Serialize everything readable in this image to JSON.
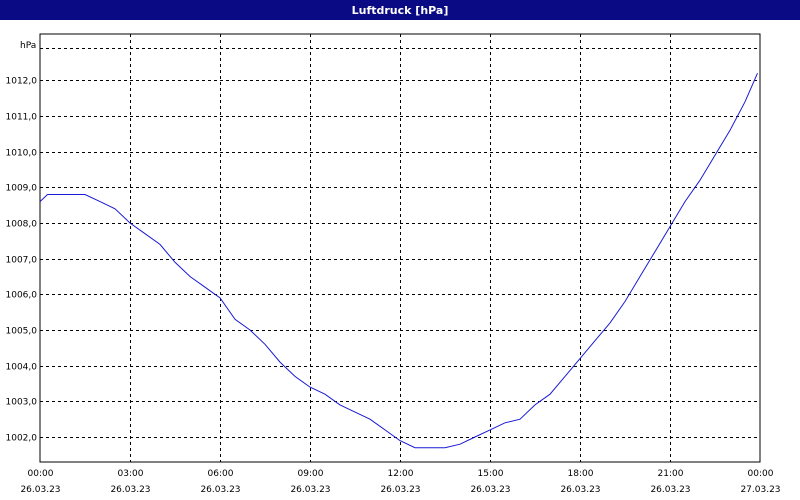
{
  "title": "Luftdruck [hPa]",
  "colors": {
    "title_bar": "#0a0a84",
    "title_text": "#ffffff",
    "line": "#1a1ad6",
    "grid": "#000000",
    "background": "#ffffff"
  },
  "chart_data": {
    "type": "line",
    "title": "Luftdruck [hPa]",
    "ylabel": "hPa",
    "xlabel": "",
    "grid": true,
    "grid_style": "dashed",
    "ylim": [
      1001.3,
      1013.3
    ],
    "yticks": [
      "1002,0",
      "1003,0",
      "1004,0",
      "1005,0",
      "1006,0",
      "1007,0",
      "1008,0",
      "1009,0",
      "1010,0",
      "1011,0",
      "1012,0"
    ],
    "ytick_values": [
      1002,
      1003,
      1004,
      1005,
      1006,
      1007,
      1008,
      1009,
      1010,
      1011,
      1012
    ],
    "xlim": [
      "26.03.23 00:00",
      "27.03.23 00:00"
    ],
    "xticks": [
      {
        "time": "00:00",
        "date": "26.03.23"
      },
      {
        "time": "03:00",
        "date": "26.03.23"
      },
      {
        "time": "06:00",
        "date": "26.03.23"
      },
      {
        "time": "09:00",
        "date": "26.03.23"
      },
      {
        "time": "12:00",
        "date": "26.03.23"
      },
      {
        "time": "15:00",
        "date": "26.03.23"
      },
      {
        "time": "18:00",
        "date": "26.03.23"
      },
      {
        "time": "21:00",
        "date": "26.03.23"
      },
      {
        "time": "00:00",
        "date": "27.03.23"
      }
    ],
    "series": [
      {
        "x": [
          "26.03.23 00:00",
          "26.03.23 00:15",
          "26.03.23 00:30",
          "26.03.23 01:00",
          "26.03.23 01:30",
          "26.03.23 02:00",
          "26.03.23 02:30",
          "26.03.23 03:00",
          "26.03.23 03:30",
          "26.03.23 04:00",
          "26.03.23 04:30",
          "26.03.23 05:00",
          "26.03.23 05:30",
          "26.03.23 06:00",
          "26.03.23 06:30",
          "26.03.23 07:00",
          "26.03.23 07:30",
          "26.03.23 08:00",
          "26.03.23 08:30",
          "26.03.23 09:00",
          "26.03.23 09:30",
          "26.03.23 10:00",
          "26.03.23 10:30",
          "26.03.23 11:00",
          "26.03.23 11:30",
          "26.03.23 12:00",
          "26.03.23 12:30",
          "26.03.23 13:00",
          "26.03.23 13:30",
          "26.03.23 14:00",
          "26.03.23 14:30",
          "26.03.23 15:00",
          "26.03.23 15:30",
          "26.03.23 16:00",
          "26.03.23 16:30",
          "26.03.23 17:00",
          "26.03.23 17:30",
          "26.03.23 18:00",
          "26.03.23 18:30",
          "26.03.23 19:00",
          "26.03.23 19:30",
          "26.03.23 20:00",
          "26.03.23 20:30",
          "26.03.23 21:00",
          "26.03.23 21:30",
          "26.03.23 22:00",
          "26.03.23 22:30",
          "26.03.23 23:00",
          "26.03.23 23:30",
          "26.03.23 23:55"
        ],
        "y": [
          1008.6,
          1008.8,
          1008.8,
          1008.8,
          1008.8,
          1008.6,
          1008.4,
          1008.0,
          1007.7,
          1007.4,
          1006.9,
          1006.5,
          1006.2,
          1005.9,
          1005.3,
          1005.0,
          1004.6,
          1004.1,
          1003.7,
          1003.4,
          1003.2,
          1002.9,
          1002.7,
          1002.5,
          1002.2,
          1001.9,
          1001.7,
          1001.7,
          1001.7,
          1001.8,
          1002.0,
          1002.2,
          1002.4,
          1002.5,
          1002.9,
          1003.2,
          1003.7,
          1004.2,
          1004.7,
          1005.2,
          1005.8,
          1006.5,
          1007.2,
          1007.9,
          1008.6,
          1009.2,
          1009.9,
          1010.6,
          1011.4,
          1012.2
        ]
      }
    ]
  }
}
